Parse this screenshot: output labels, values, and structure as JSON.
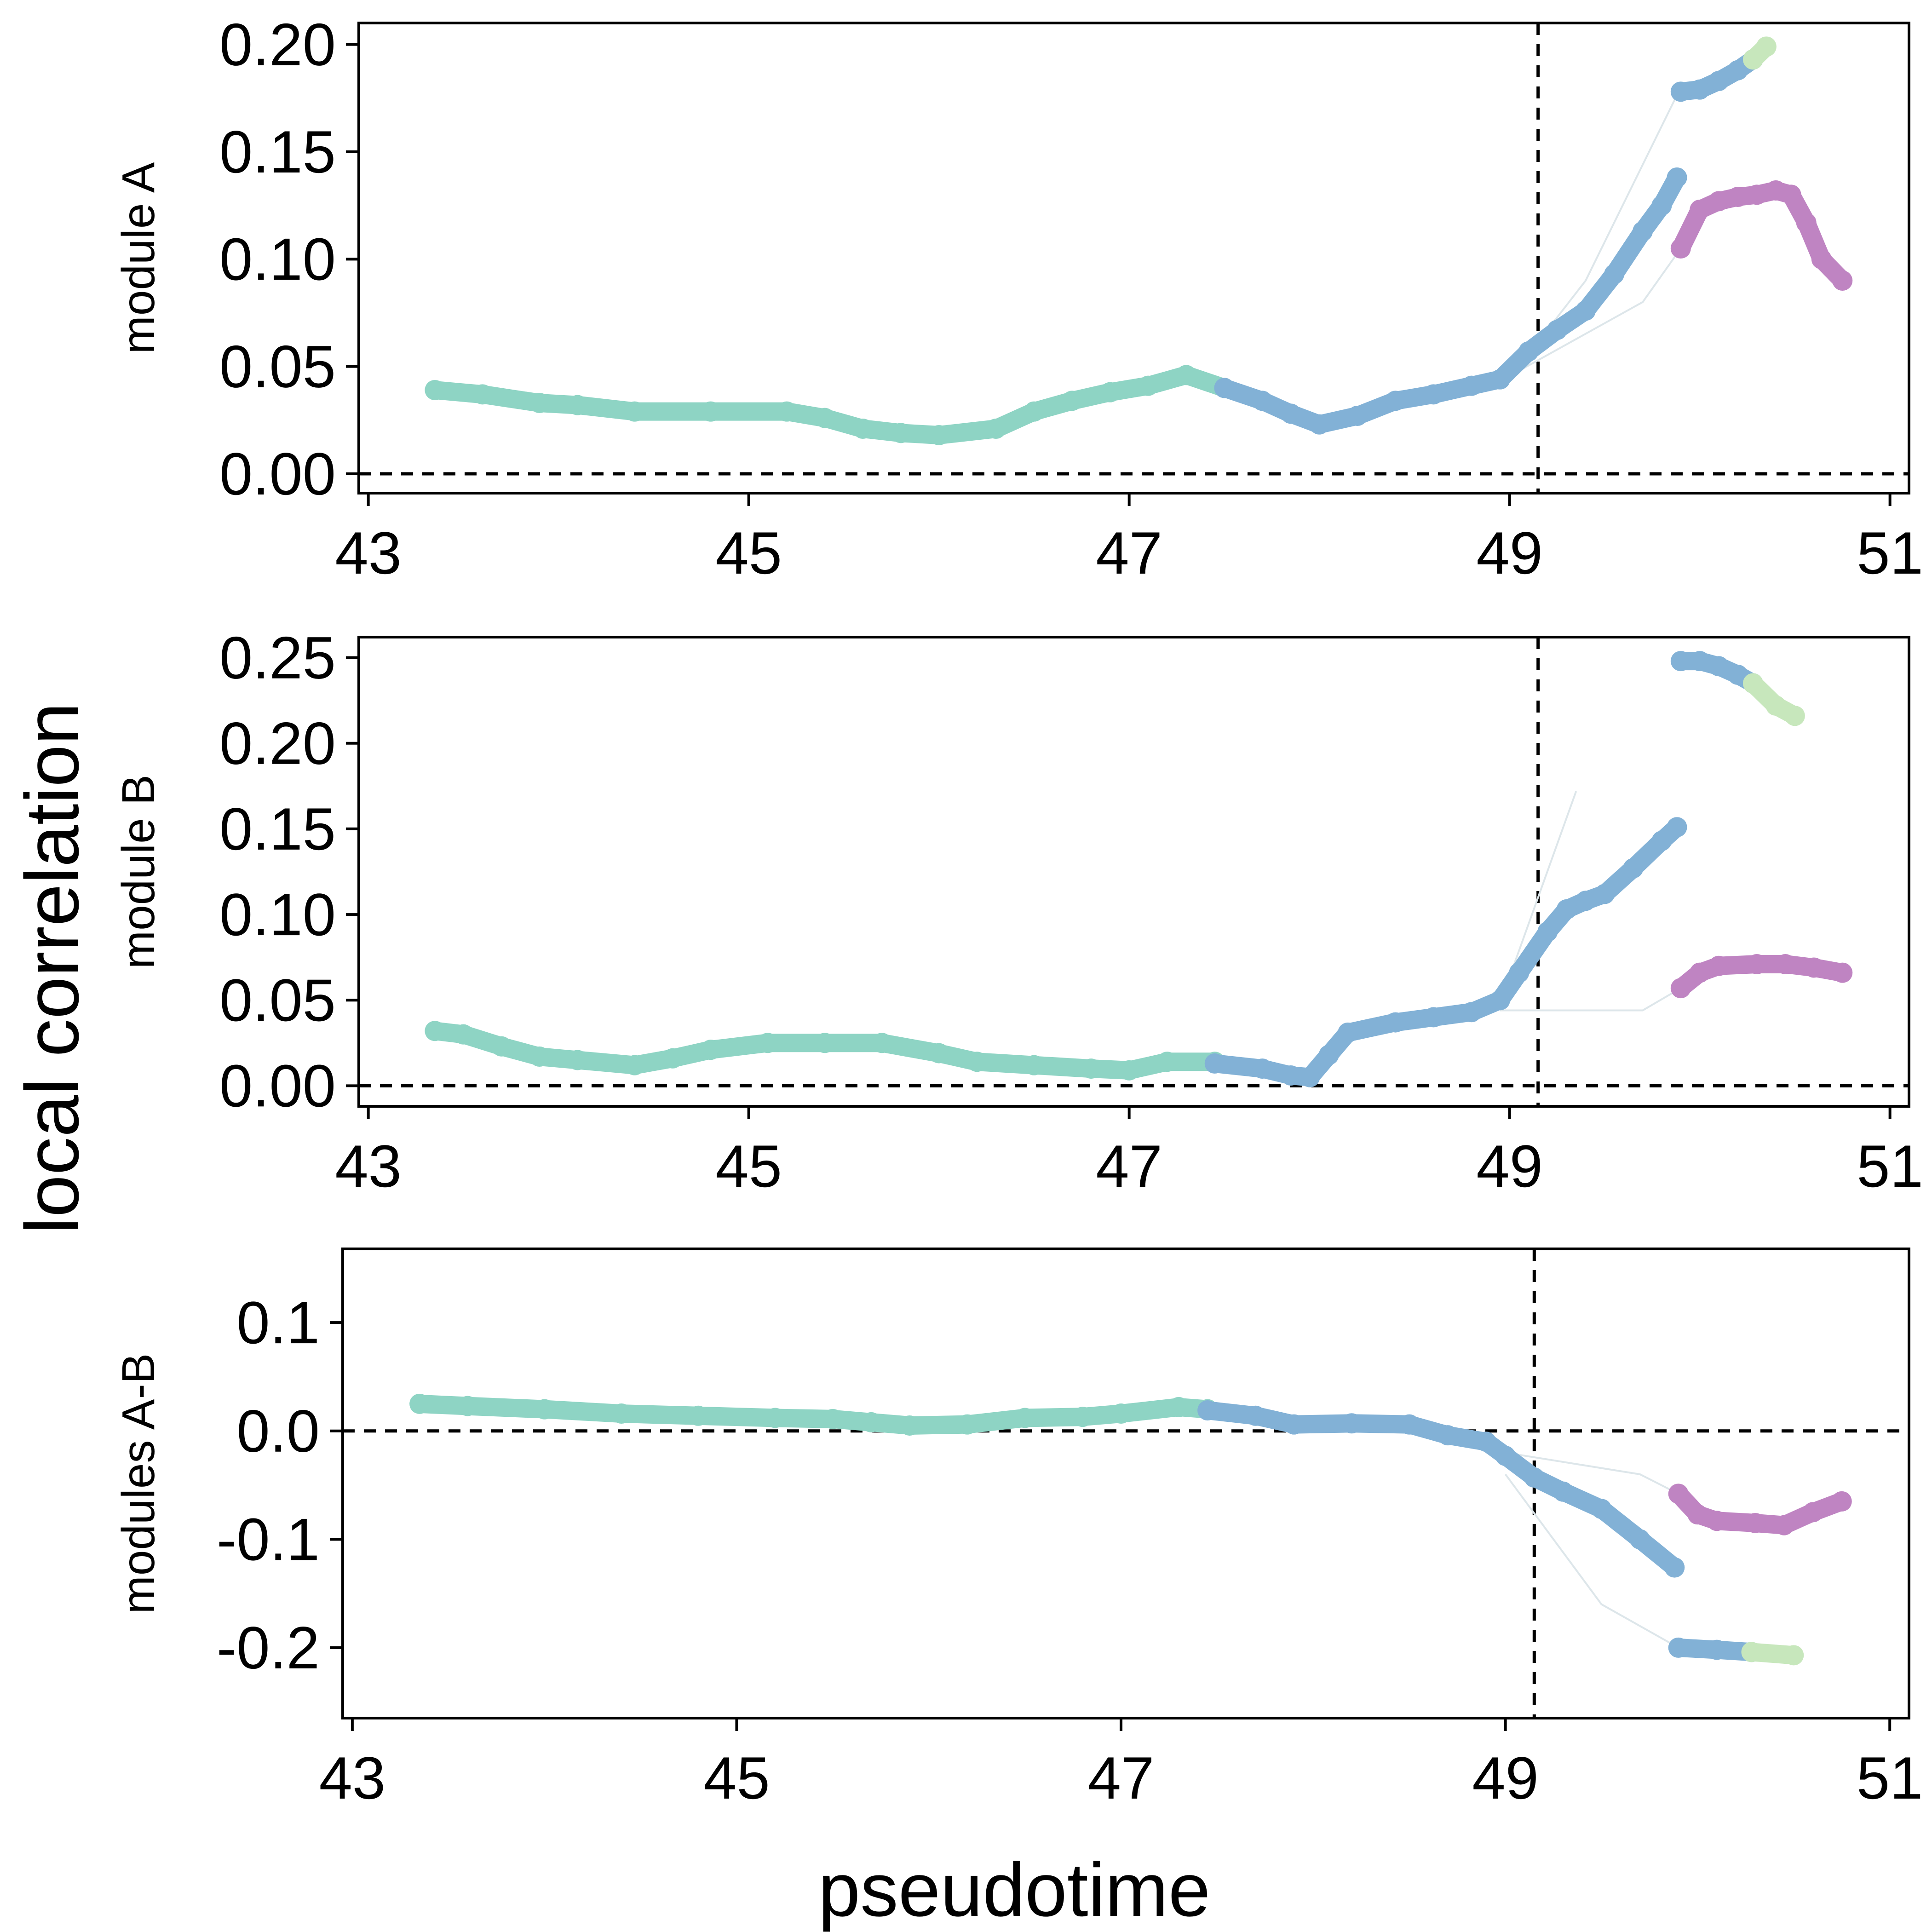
{
  "figure": {
    "ylabel": "local correlation",
    "xlabel": "pseudotime"
  },
  "colors": {
    "teal": "#8ed4c4",
    "blue": "#82b1d6",
    "purple": "#bf84c2",
    "lightgreen": "#c7e7bc",
    "thin": "#dde6ea"
  },
  "chart_data": [
    {
      "type": "line",
      "ylabel": "module A",
      "xlim": [
        42.95,
        51.1
      ],
      "ylim": [
        -0.009,
        0.21
      ],
      "xticks": [
        43,
        45,
        47,
        49,
        51
      ],
      "yticks": [
        0.0,
        0.05,
        0.1,
        0.15,
        0.2
      ],
      "ytick_labels": [
        "0.00",
        "0.05",
        "0.10",
        "0.15",
        "0.20"
      ],
      "hline": 0,
      "vline": 49.15,
      "series": [
        {
          "color": "teal",
          "x": [
            43.35,
            43.6,
            43.9,
            44.1,
            44.4,
            44.8,
            45.2,
            45.4,
            45.6,
            45.8,
            46.0,
            46.3,
            46.5,
            46.7,
            46.9,
            47.1,
            47.3,
            47.5
          ],
          "y": [
            0.039,
            0.037,
            0.033,
            0.032,
            0.029,
            0.029,
            0.029,
            0.026,
            0.021,
            0.019,
            0.018,
            0.021,
            0.029,
            0.034,
            0.038,
            0.041,
            0.046,
            0.04
          ]
        },
        {
          "color": "blue",
          "x": [
            47.5,
            47.7,
            47.85,
            48.0,
            48.2,
            48.4,
            48.6,
            48.8,
            48.95,
            49.1,
            49.25,
            49.4,
            49.55,
            49.7,
            49.8,
            49.88
          ],
          "y": [
            0.04,
            0.034,
            0.028,
            0.023,
            0.027,
            0.034,
            0.037,
            0.041,
            0.044,
            0.057,
            0.067,
            0.076,
            0.093,
            0.113,
            0.125,
            0.138
          ]
        },
        {
          "color": "blue",
          "x": [
            49.9,
            50.0,
            50.1,
            50.2,
            50.28
          ],
          "y": [
            0.178,
            0.179,
            0.183,
            0.188,
            0.193
          ]
        },
        {
          "color": "lightgreen",
          "x": [
            50.28,
            50.35
          ],
          "y": [
            0.193,
            0.199
          ]
        },
        {
          "color": "purple",
          "x": [
            49.9,
            50.0,
            50.1,
            50.2,
            50.3,
            50.4,
            50.48,
            50.56,
            50.64,
            50.75
          ],
          "y": [
            0.105,
            0.123,
            0.127,
            0.129,
            0.13,
            0.132,
            0.13,
            0.117,
            0.1,
            0.09
          ]
        }
      ],
      "thin_series": [
        {
          "x": [
            49.05,
            49.4,
            49.9
          ],
          "y": [
            0.05,
            0.09,
            0.18
          ]
        },
        {
          "x": [
            49.05,
            49.7,
            49.9
          ],
          "y": [
            0.048,
            0.08,
            0.105
          ]
        }
      ]
    },
    {
      "type": "line",
      "ylabel": "module B",
      "xlim": [
        42.95,
        51.1
      ],
      "ylim": [
        -0.012,
        0.262
      ],
      "xticks": [
        43,
        45,
        47,
        49,
        51
      ],
      "yticks": [
        0.0,
        0.05,
        0.1,
        0.15,
        0.2,
        0.25
      ],
      "ytick_labels": [
        "0.00",
        "0.05",
        "0.10",
        "0.15",
        "0.20",
        "0.25"
      ],
      "hline": 0,
      "vline": 49.15,
      "series": [
        {
          "color": "teal",
          "x": [
            43.35,
            43.5,
            43.7,
            43.9,
            44.1,
            44.4,
            44.6,
            44.8,
            45.1,
            45.4,
            45.7,
            46.0,
            46.2,
            46.5,
            46.8,
            47.0,
            47.2,
            47.45
          ],
          "y": [
            0.032,
            0.03,
            0.023,
            0.017,
            0.015,
            0.012,
            0.016,
            0.021,
            0.025,
            0.025,
            0.025,
            0.019,
            0.014,
            0.012,
            0.01,
            0.009,
            0.014,
            0.014
          ]
        },
        {
          "color": "blue",
          "x": [
            47.45,
            47.7,
            47.85,
            47.95,
            48.05,
            48.15,
            48.4,
            48.6,
            48.8,
            48.95,
            49.05,
            49.2,
            49.3,
            49.4,
            49.5,
            49.65,
            49.8,
            49.88
          ],
          "y": [
            0.013,
            0.01,
            0.006,
            0.005,
            0.018,
            0.031,
            0.037,
            0.04,
            0.043,
            0.05,
            0.066,
            0.09,
            0.103,
            0.108,
            0.112,
            0.127,
            0.143,
            0.151
          ]
        },
        {
          "color": "blue",
          "x": [
            49.9,
            50.0,
            50.1,
            50.2,
            50.28
          ],
          "y": [
            0.248,
            0.248,
            0.245,
            0.24,
            0.235
          ]
        },
        {
          "color": "lightgreen",
          "x": [
            50.28,
            50.4,
            50.5
          ],
          "y": [
            0.235,
            0.222,
            0.216
          ]
        },
        {
          "color": "purple",
          "x": [
            49.9,
            50.0,
            50.1,
            50.3,
            50.45,
            50.6,
            50.75
          ],
          "y": [
            0.057,
            0.066,
            0.07,
            0.071,
            0.071,
            0.069,
            0.066
          ]
        }
      ],
      "thin_series": [
        {
          "x": [
            48.95,
            49.35
          ],
          "y": [
            0.048,
            0.172
          ]
        },
        {
          "x": [
            48.95,
            49.7,
            49.9
          ],
          "y": [
            0.044,
            0.044,
            0.057
          ]
        }
      ]
    },
    {
      "type": "line",
      "ylabel": "modules A-B",
      "xlim": [
        42.95,
        51.1
      ],
      "ylim": [
        -0.265,
        0.168
      ],
      "xticks": [
        43,
        45,
        47,
        49,
        51
      ],
      "yticks": [
        -0.2,
        -0.1,
        0.0,
        0.1
      ],
      "ytick_labels": [
        "-0.2",
        "-0.1",
        "0.0",
        "0.1"
      ],
      "hline": 0,
      "vline": 49.15,
      "series": [
        {
          "color": "teal",
          "x": [
            43.35,
            43.6,
            44.0,
            44.4,
            44.8,
            45.2,
            45.5,
            45.7,
            45.9,
            46.2,
            46.5,
            46.8,
            47.0,
            47.3,
            47.45
          ],
          "y": [
            0.025,
            0.023,
            0.02,
            0.016,
            0.014,
            0.012,
            0.011,
            0.008,
            0.005,
            0.006,
            0.012,
            0.013,
            0.016,
            0.022,
            0.02
          ]
        },
        {
          "color": "blue",
          "x": [
            47.45,
            47.7,
            47.9,
            48.2,
            48.5,
            48.7,
            48.9,
            49.0,
            49.15,
            49.3,
            49.5,
            49.7,
            49.88
          ],
          "y": [
            0.019,
            0.014,
            0.006,
            0.007,
            0.006,
            -0.004,
            -0.01,
            -0.023,
            -0.043,
            -0.056,
            -0.072,
            -0.1,
            -0.126
          ]
        },
        {
          "color": "blue",
          "x": [
            49.9,
            50.1,
            50.28
          ],
          "y": [
            -0.2,
            -0.202,
            -0.204
          ]
        },
        {
          "color": "lightgreen",
          "x": [
            50.28,
            50.5
          ],
          "y": [
            -0.204,
            -0.207
          ]
        },
        {
          "color": "purple",
          "x": [
            49.9,
            50.0,
            50.1,
            50.3,
            50.45,
            50.6,
            50.75
          ],
          "y": [
            -0.058,
            -0.077,
            -0.083,
            -0.085,
            -0.087,
            -0.075,
            -0.065
          ]
        }
      ],
      "thin_series": [
        {
          "x": [
            49.0,
            49.7,
            49.9
          ],
          "y": [
            -0.02,
            -0.04,
            -0.058
          ]
        },
        {
          "x": [
            49.0,
            49.5,
            49.9
          ],
          "y": [
            -0.04,
            -0.16,
            -0.2
          ]
        }
      ]
    }
  ]
}
